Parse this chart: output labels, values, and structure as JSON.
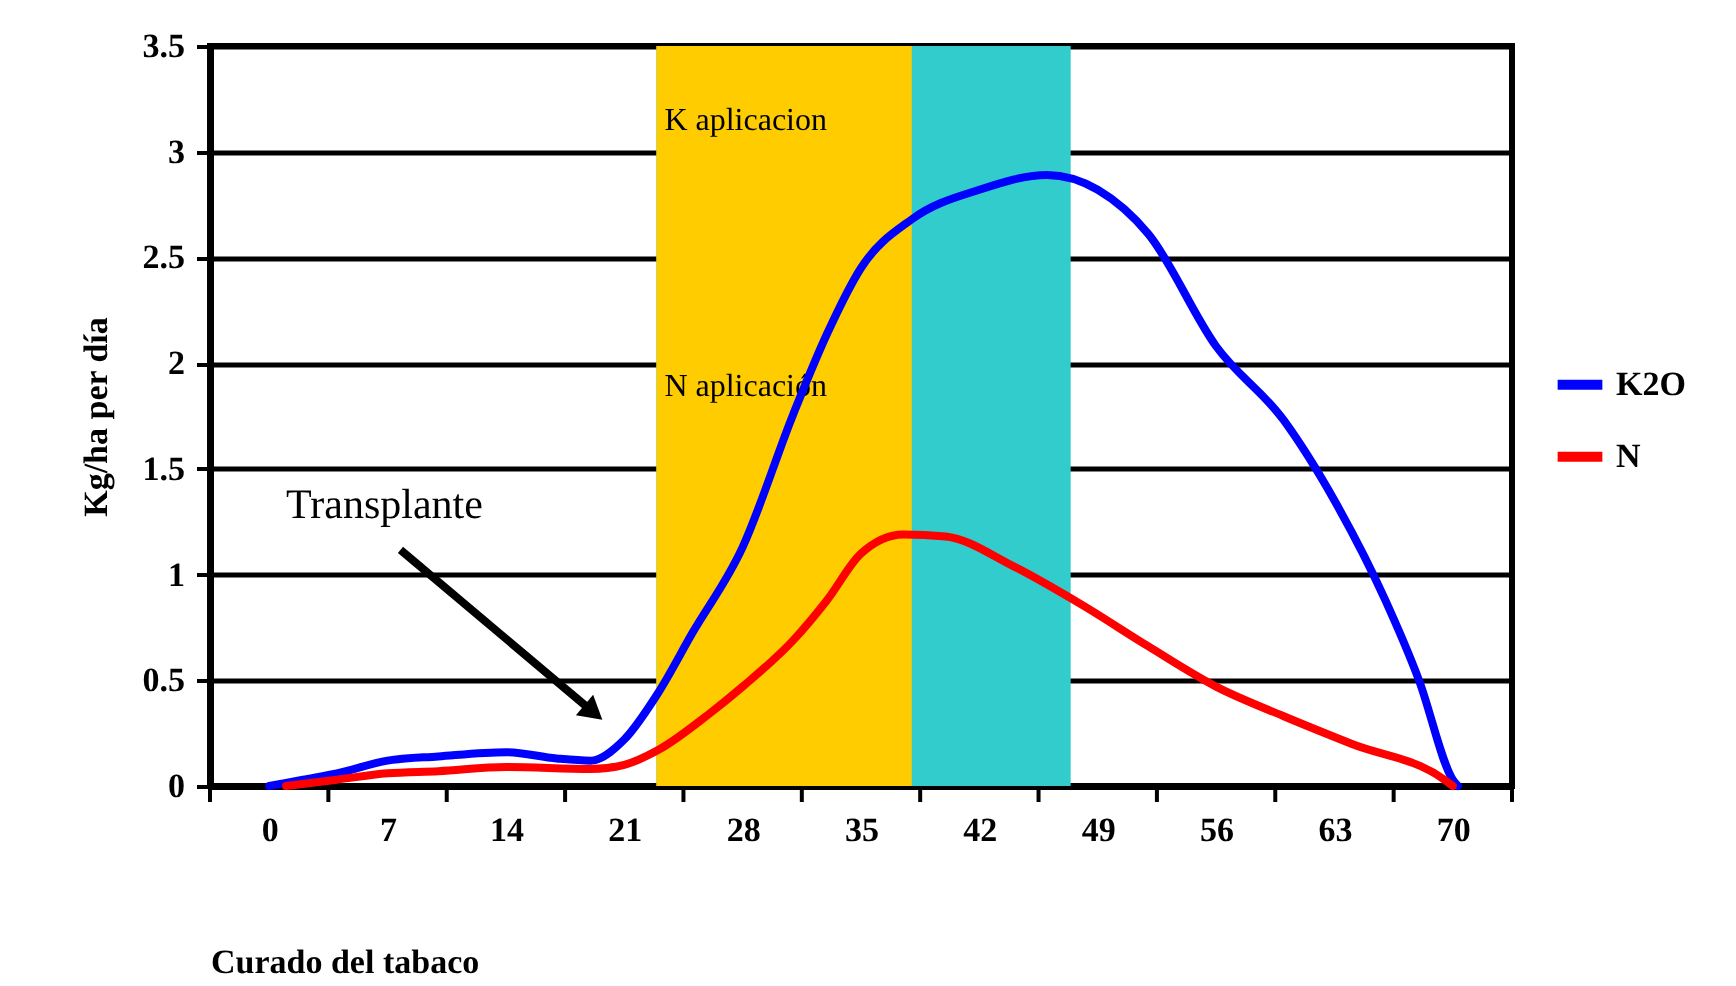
{
  "chart_data": {
    "type": "line",
    "xlabel": "Curado del tabaco",
    "ylabel": "Kg/ha per día",
    "series": [
      {
        "name": "K2O",
        "color": "#0000ff",
        "x": [
          0,
          2,
          4,
          7,
          10,
          14,
          17,
          19,
          21,
          23,
          25,
          28,
          31,
          33,
          35,
          38,
          42,
          46,
          49,
          52,
          56,
          60,
          63,
          66,
          68,
          70,
          70.3
        ],
        "values": [
          0,
          0.03,
          0.06,
          0.12,
          0.14,
          0.16,
          0.13,
          0.12,
          0.22,
          0.44,
          0.72,
          1.13,
          1.76,
          2.14,
          2.45,
          2.68,
          2.82,
          2.89,
          2.82,
          2.61,
          2.08,
          1.73,
          1.35,
          0.88,
          0.5,
          0.03,
          0
        ]
      },
      {
        "name": "N",
        "color": "#ff0000",
        "x": [
          1,
          4,
          7,
          10,
          14,
          19,
          21,
          23,
          26,
          28,
          31,
          33,
          35,
          37.5,
          40,
          44,
          48,
          52,
          56,
          60,
          64,
          69.5,
          70
        ],
        "values": [
          0,
          0.03,
          0.06,
          0.07,
          0.09,
          0.08,
          0.1,
          0.17,
          0.34,
          0.47,
          0.69,
          0.88,
          1.1,
          1.19,
          1.18,
          1.04,
          0.86,
          0.66,
          0.47,
          0.33,
          0.2,
          0.03,
          0
        ]
      }
    ],
    "bands": [
      {
        "axis": "x",
        "from": 22.9,
        "to": 47.4,
        "label": "K aplicacion",
        "color": "#33cccc"
      },
      {
        "axis": "x",
        "from": 22.9,
        "to": 38,
        "label": "N aplicación",
        "color": "#ffcc00"
      }
    ],
    "annotations": [
      {
        "text": "Transplante",
        "x": 19,
        "y": 0.36
      }
    ],
    "xlim": [
      -3.5,
      73.5
    ],
    "xticks": [
      {
        "value": -3.5,
        "label": null
      },
      0,
      {
        "value": 3.5,
        "label": null
      },
      7,
      {
        "value": 10.5,
        "label": null
      },
      14,
      {
        "value": 17.5,
        "label": null
      },
      21,
      {
        "value": 24.5,
        "label": null
      },
      28,
      {
        "value": 31.5,
        "label": null
      },
      35,
      {
        "value": 38.5,
        "label": null
      },
      42,
      {
        "value": 45.5,
        "label": null
      },
      49,
      {
        "value": 52.5,
        "label": null
      },
      56,
      {
        "value": 59.5,
        "label": null
      },
      63,
      {
        "value": 66.5,
        "label": null
      },
      70,
      {
        "value": 73.5,
        "label": null
      }
    ],
    "ylim": [
      0,
      3.5
    ],
    "yticks": [
      0,
      0.5,
      1,
      1.5,
      2,
      2.5,
      3,
      3.5
    ],
    "grid": "y",
    "legend": "right"
  }
}
